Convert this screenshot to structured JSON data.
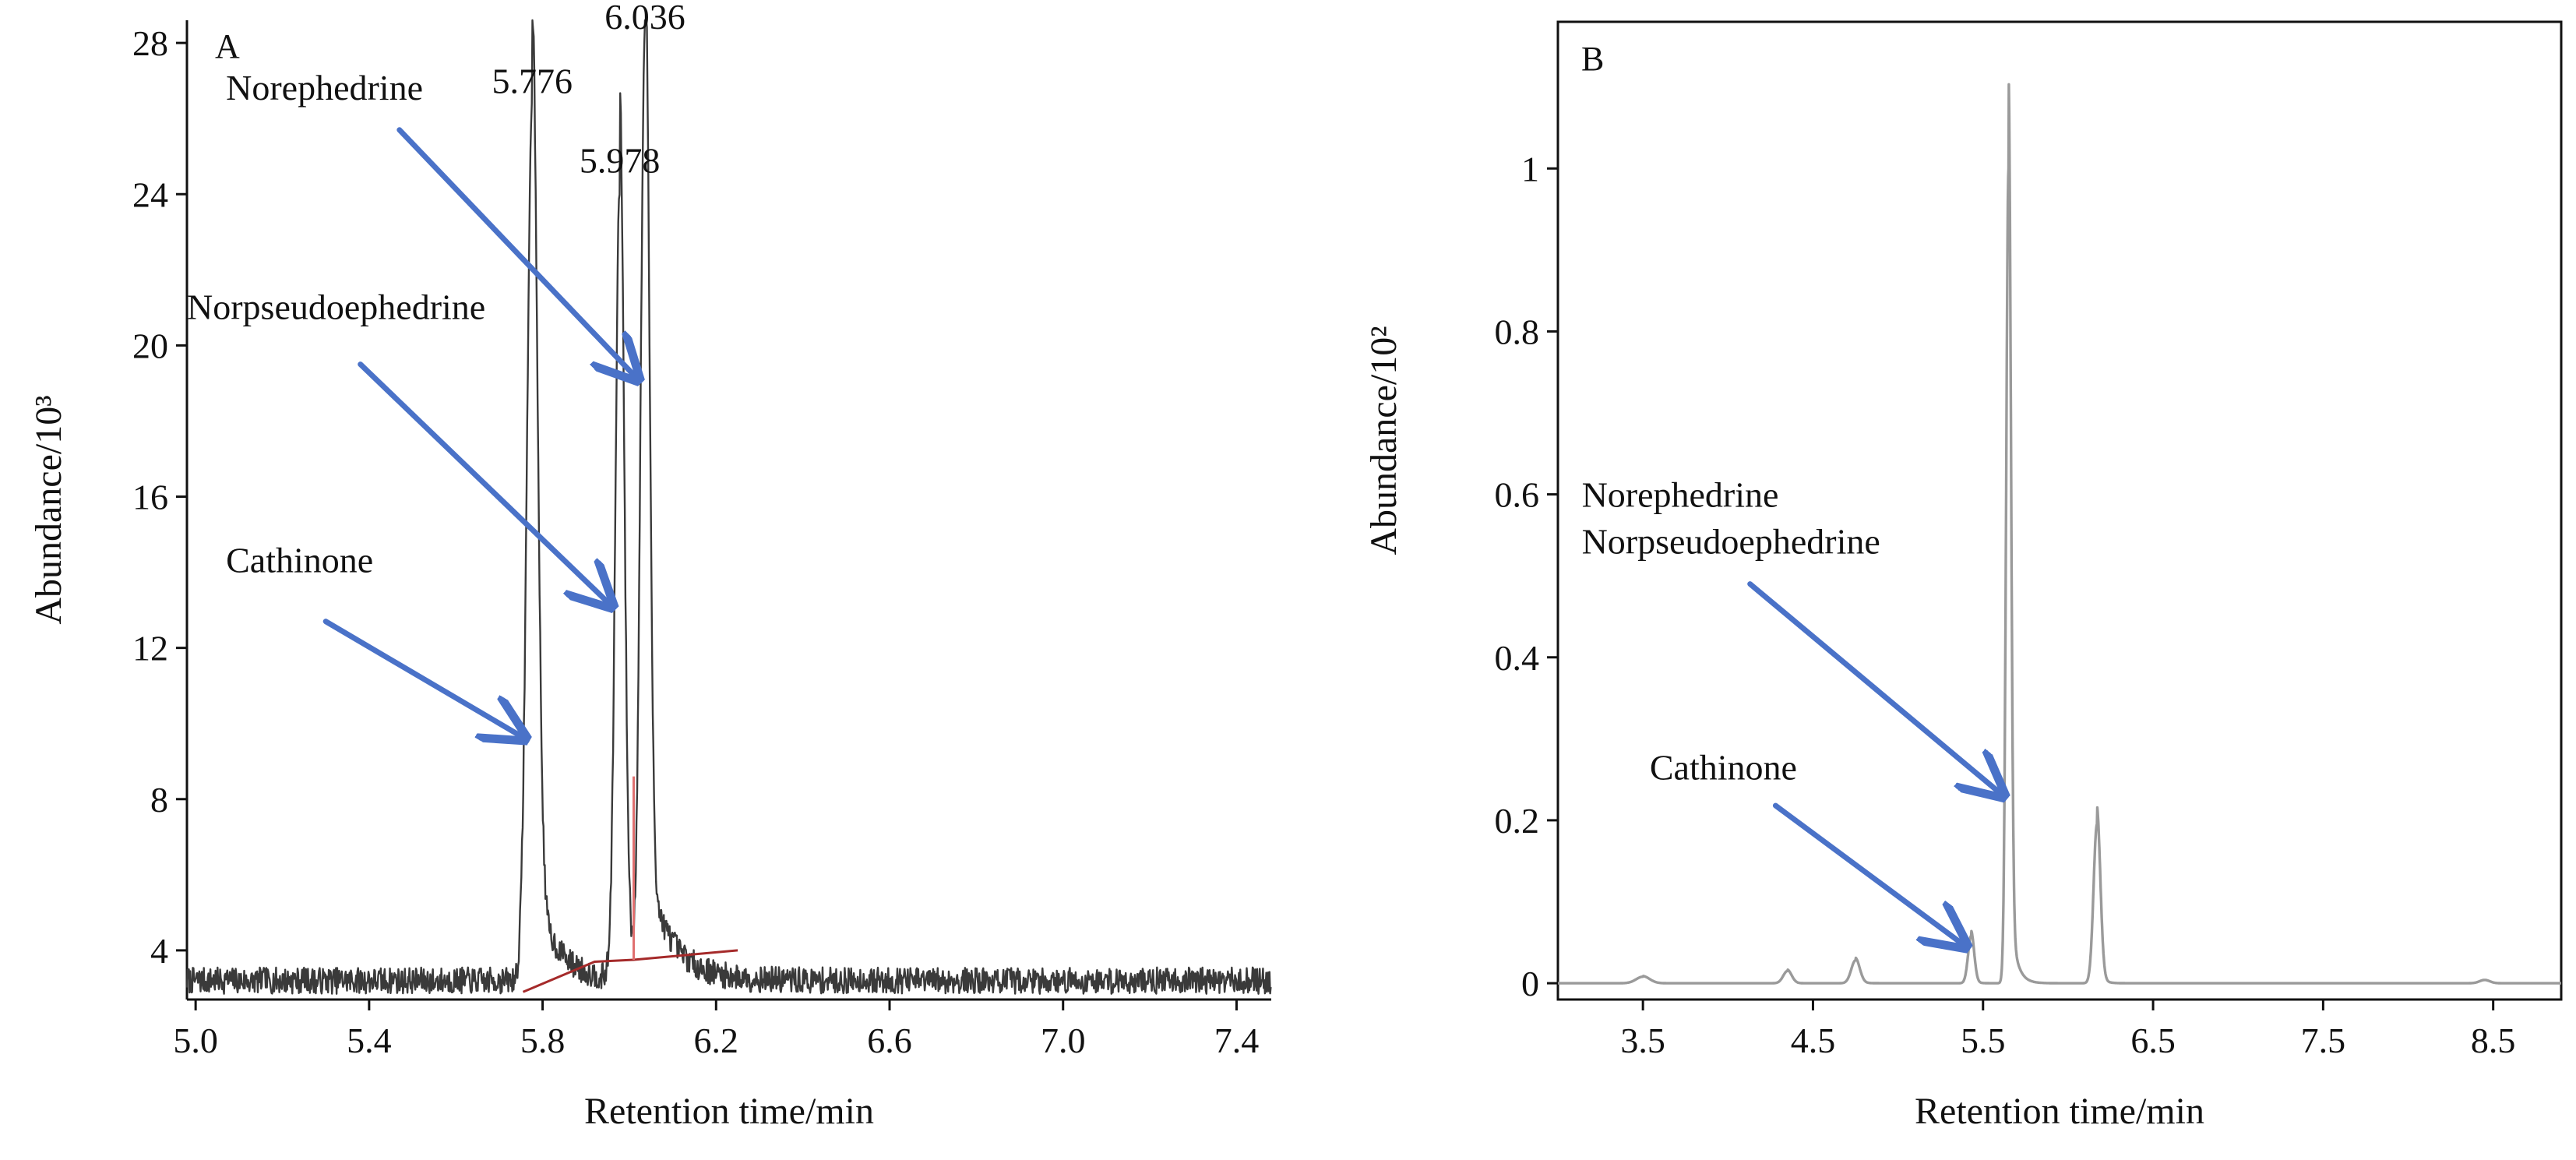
{
  "colors": {
    "trace_a": "#3a3a3a",
    "trace_b": "#9a9a9a",
    "baseline": "#a52a2a",
    "split_line": "#e07070",
    "arrow": "#4a72c8",
    "axis": "#111111"
  },
  "chart_data": [
    {
      "type": "line",
      "panel": "A",
      "xlabel": "Retention time/min",
      "ylabel": "Abundance/10³",
      "xlim": [
        4.98,
        7.48
      ],
      "ylim": [
        2.7,
        28.6
      ],
      "xticks": [
        "5.0",
        "5.4",
        "5.8",
        "6.2",
        "6.6",
        "7.0",
        "7.4"
      ],
      "yticks": [
        "4",
        "8",
        "12",
        "16",
        "20",
        "24",
        "28"
      ],
      "frame": "left-bottom",
      "grid": false,
      "series": [
        {
          "baseline_level": 3.2,
          "noise_amplitude": 0.35,
          "peaks": [
            {
              "x": 5.776,
              "height": 23.1,
              "width": 0.012,
              "tail": 0.05
            },
            {
              "x": 5.978,
              "height": 21.0,
              "width": 0.01,
              "tail": 0.02
            },
            {
              "x": 6.036,
              "height": 24.8,
              "width": 0.01,
              "tail": 0.06
            }
          ],
          "peak_labels": [
            {
              "x": 5.776,
              "text": "5.776"
            },
            {
              "x": 5.978,
              "text": "5.978"
            },
            {
              "x": 6.036,
              "text": "6.036"
            }
          ]
        }
      ],
      "integration_baseline": [
        [
          5.755,
          2.9
        ],
        [
          5.92,
          3.7
        ],
        [
          6.01,
          3.75
        ],
        [
          6.25,
          4.0
        ]
      ],
      "split_line_x": 6.01,
      "annotations": [
        {
          "text": "Norephedrine",
          "label_x": 5.07,
          "label_y": 26.5,
          "from": [
            5.47,
            25.7
          ],
          "to": [
            6.02,
            19.1
          ]
        },
        {
          "text": "Norpseudoephedrine",
          "label_x": 4.98,
          "label_y": 20.7,
          "from": [
            5.38,
            19.5
          ],
          "to": [
            5.96,
            13.1
          ]
        },
        {
          "text": "Cathinone",
          "label_x": 5.07,
          "label_y": 14.0,
          "from": [
            5.3,
            12.7
          ],
          "to": [
            5.76,
            9.6
          ]
        }
      ]
    },
    {
      "type": "line",
      "panel": "B",
      "xlabel": "Retention time/min",
      "ylabel": "Abundance/10²",
      "xlim": [
        3.0,
        8.9
      ],
      "ylim": [
        -0.02,
        1.18
      ],
      "xticks": [
        "3.5",
        "4.5",
        "5.5",
        "6.5",
        "7.5",
        "8.5"
      ],
      "yticks": [
        "0",
        "0.2",
        "0.4",
        "0.6",
        "0.8",
        "1"
      ],
      "frame": "box",
      "grid": false,
      "series": [
        {
          "baseline_level": 0.0,
          "peaks": [
            {
              "x": 3.5,
              "height": 0.008,
              "width": 0.04,
              "tail": 0.03
            },
            {
              "x": 4.35,
              "height": 0.015,
              "width": 0.025,
              "tail": 0.02
            },
            {
              "x": 4.75,
              "height": 0.028,
              "width": 0.025,
              "tail": 0.03
            },
            {
              "x": 5.43,
              "height": 0.058,
              "width": 0.018,
              "tail": 0.02
            },
            {
              "x": 5.65,
              "height": 1.0,
              "width": 0.014,
              "tail": 0.035
            },
            {
              "x": 6.17,
              "height": 0.195,
              "width": 0.02,
              "tail": 0.025
            },
            {
              "x": 8.45,
              "height": 0.004,
              "width": 0.03,
              "tail": 0.0
            }
          ]
        }
      ],
      "annotations": [
        {
          "text": "Norephedrine\nNorpseudoephedrine",
          "label_x": 3.14,
          "label_y": 0.585,
          "from": [
            4.13,
            0.49
          ],
          "to": [
            5.62,
            0.23
          ]
        },
        {
          "text": "Cathinone",
          "label_x": 3.54,
          "label_y": 0.25,
          "from": [
            4.28,
            0.218
          ],
          "to": [
            5.4,
            0.045
          ]
        }
      ]
    }
  ]
}
